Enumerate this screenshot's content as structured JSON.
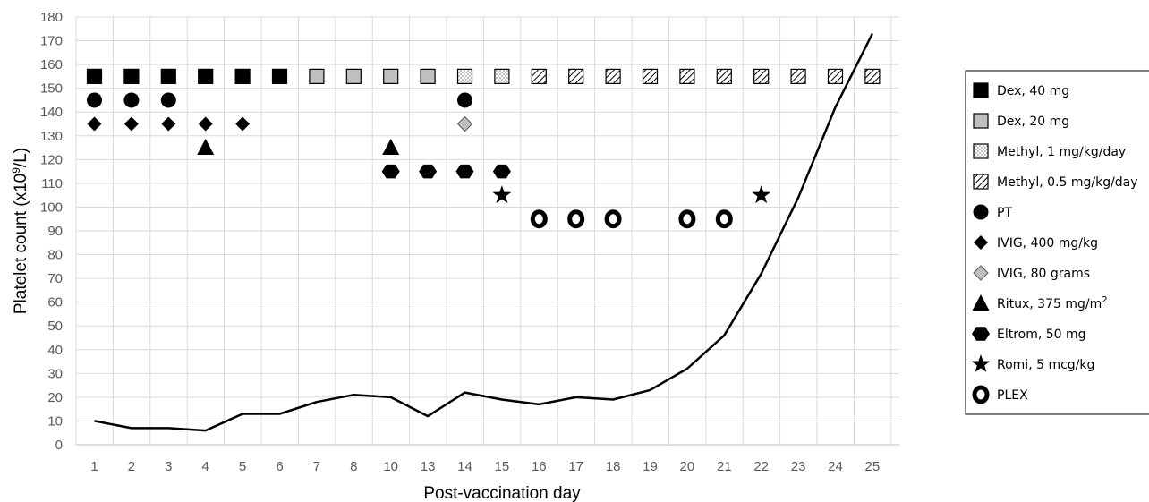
{
  "chart_data": {
    "type": "line",
    "xlabel": "Post-vaccination day",
    "ylabel": "Platelet count (x10^9/L)",
    "ylabel_parts": {
      "main": "Platelet count (x10",
      "sup": "9",
      "tail": "/L)"
    },
    "ylim": [
      0,
      180
    ],
    "y_ticks": [
      0,
      10,
      20,
      30,
      40,
      50,
      60,
      70,
      80,
      90,
      100,
      110,
      120,
      130,
      140,
      150,
      160,
      170,
      180
    ],
    "grid": true,
    "legend_position": "right",
    "categories": [
      "1",
      "2",
      "3",
      "4",
      "5",
      "6",
      "7",
      "8",
      "10",
      "13",
      "14",
      "15",
      "16",
      "17",
      "18",
      "19",
      "20",
      "21",
      "22",
      "23",
      "24",
      "25"
    ],
    "series": [
      {
        "values": [
          10,
          7,
          7,
          6,
          13,
          13,
          18,
          21,
          20,
          12,
          22,
          19,
          17,
          20,
          19,
          23,
          32,
          46,
          72,
          104,
          142,
          173
        ]
      }
    ],
    "treatments": [
      {
        "key": "dex40",
        "label": "Dex, 40 mg",
        "marker": "square",
        "fill": "#000000",
        "y": 155,
        "days": [
          "1",
          "2",
          "3",
          "4",
          "5",
          "6"
        ]
      },
      {
        "key": "dex20",
        "label": "Dex, 20 mg",
        "marker": "square",
        "fill": "#bfbfbf",
        "y": 155,
        "days": [
          "7",
          "8",
          "10",
          "13"
        ]
      },
      {
        "key": "methyl1",
        "label": "Methyl, 1 mg/kg/day",
        "marker": "square",
        "fill": "dots",
        "y": 155,
        "days": [
          "14",
          "15"
        ]
      },
      {
        "key": "methyl05",
        "label": "Methyl, 0.5 mg/kg/day",
        "marker": "square",
        "fill": "hatch",
        "y": 155,
        "days": [
          "16",
          "17",
          "18",
          "19",
          "20",
          "21",
          "22",
          "23",
          "24",
          "25"
        ]
      },
      {
        "key": "pt",
        "label": "PT",
        "marker": "circle",
        "fill": "#000000",
        "y": 145,
        "days": [
          "1",
          "2",
          "3",
          "14"
        ]
      },
      {
        "key": "ivig400",
        "label": "IVIG, 400 mg/kg",
        "marker": "diamond",
        "fill": "#000000",
        "y": 135,
        "days": [
          "1",
          "2",
          "3",
          "4",
          "5"
        ]
      },
      {
        "key": "ivig80",
        "label": "IVIG, 80 grams",
        "marker": "diamond",
        "fill": "#bfbfbf",
        "y": 135,
        "days": [
          "14"
        ]
      },
      {
        "key": "ritux",
        "label": "Ritux, 375 mg/m²",
        "label_main": "Ritux, 375 mg/m",
        "label_sup": "2",
        "marker": "triangle",
        "fill": "#000000",
        "y": 125,
        "days": [
          "4",
          "10"
        ]
      },
      {
        "key": "eltrom",
        "label": "Eltrom, 50 mg",
        "marker": "hexagon",
        "fill": "#000000",
        "y": 115,
        "days": [
          "10",
          "13",
          "14",
          "15"
        ]
      },
      {
        "key": "romi",
        "label": "Romi, 5 mcg/kg",
        "marker": "star",
        "fill": "#000000",
        "y": 105,
        "days": [
          "15",
          "22"
        ]
      },
      {
        "key": "plex",
        "label": "PLEX",
        "marker": "ring",
        "fill": "#000000",
        "y": 95,
        "days": [
          "16",
          "17",
          "18",
          "20",
          "21"
        ]
      }
    ]
  }
}
